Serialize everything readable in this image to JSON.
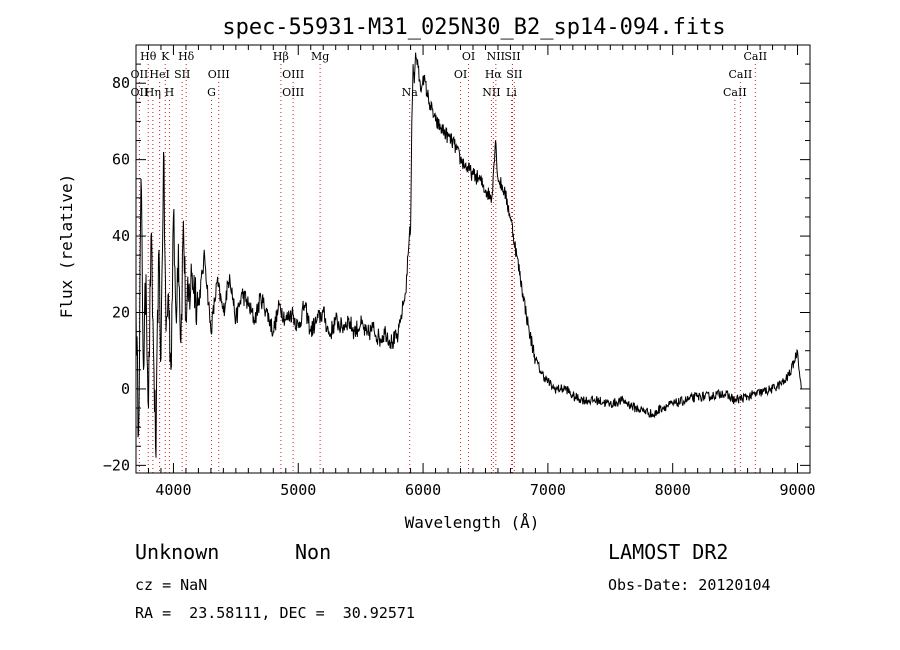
{
  "chart_data": {
    "type": "line",
    "title": "spec-55931-M31_025N30_B2_sp14-094.fits",
    "xlabel": "Wavelength (Å)",
    "ylabel": "Flux (relative)",
    "xlim": [
      3700,
      9100
    ],
    "ylim": [
      -22,
      90
    ],
    "x_ticks": [
      4000,
      5000,
      6000,
      7000,
      8000,
      9000
    ],
    "y_ticks": [
      -20,
      0,
      20,
      40,
      60,
      80
    ],
    "grid": false,
    "series": [
      {
        "color": "#000000",
        "x": [
          3700,
          3720,
          3740,
          3760,
          3780,
          3800,
          3820,
          3840,
          3860,
          3880,
          3900,
          3920,
          3940,
          3960,
          3980,
          4000,
          4020,
          4040,
          4060,
          4080,
          4100,
          4150,
          4200,
          4250,
          4300,
          4350,
          4400,
          4450,
          4500,
          4550,
          4600,
          4650,
          4700,
          4750,
          4800,
          4850,
          4900,
          4950,
          5000,
          5050,
          5100,
          5150,
          5200,
          5250,
          5300,
          5350,
          5400,
          5450,
          5500,
          5550,
          5600,
          5650,
          5700,
          5750,
          5800,
          5820,
          5840,
          5860,
          5880,
          5890,
          5900,
          5910,
          5920,
          5930,
          5940,
          5960,
          5980,
          6000,
          6050,
          6100,
          6150,
          6200,
          6250,
          6300,
          6350,
          6400,
          6450,
          6500,
          6550,
          6580,
          6600,
          6650,
          6700,
          6750,
          6800,
          6850,
          6900,
          6950,
          7000,
          7050,
          7100,
          7150,
          7200,
          7300,
          7400,
          7500,
          7600,
          7700,
          7800,
          7850,
          7900,
          8000,
          8100,
          8200,
          8300,
          8400,
          8500,
          8600,
          8700,
          8800,
          8900,
          8950,
          9000,
          9030
        ],
        "y": [
          22,
          -12,
          55,
          5,
          30,
          -5,
          40,
          10,
          -18,
          35,
          8,
          62,
          15,
          25,
          5,
          45,
          20,
          38,
          12,
          44,
          18,
          30,
          22,
          35,
          15,
          28,
          20,
          30,
          18,
          25,
          22,
          18,
          24,
          20,
          15,
          22,
          18,
          20,
          16,
          22,
          15,
          18,
          20,
          14,
          18,
          16,
          18,
          15,
          17,
          14,
          16,
          13,
          15,
          12,
          14,
          18,
          22,
          25,
          35,
          40,
          42,
          70,
          85,
          80,
          88,
          84,
          78,
          82,
          75,
          70,
          68,
          66,
          64,
          60,
          58,
          56,
          55,
          52,
          50,
          65,
          55,
          52,
          45,
          35,
          25,
          15,
          8,
          4,
          2,
          0,
          0,
          0,
          -2,
          -3,
          -3,
          -4,
          -3,
          -5,
          -6,
          -7,
          -5,
          -4,
          -3,
          -2,
          -2,
          -1,
          -3,
          -2,
          -1,
          0,
          2,
          5,
          10,
          0
        ]
      }
    ],
    "spectral_lines": [
      {
        "name": "Hθ",
        "x": 3798,
        "row": 0
      },
      {
        "name": "OII",
        "x": 3727,
        "row": 1
      },
      {
        "name": "OII",
        "x": 3727,
        "row": 2
      },
      {
        "name": "Hη",
        "x": 3835,
        "row": 2
      },
      {
        "name": "K",
        "x": 3934,
        "row": 0
      },
      {
        "name": "HeI",
        "x": 3889,
        "row": 1
      },
      {
        "name": "H",
        "x": 3968,
        "row": 2
      },
      {
        "name": "Hδ",
        "x": 4102,
        "row": 0
      },
      {
        "name": "SII",
        "x": 4070,
        "row": 1
      },
      {
        "name": "OIII",
        "x": 4363,
        "row": 1
      },
      {
        "name": "G",
        "x": 4305,
        "row": 2
      },
      {
        "name": "Hβ",
        "x": 4861,
        "row": 0
      },
      {
        "name": "OIII",
        "x": 4959,
        "row": 1
      },
      {
        "name": "OIII",
        "x": 4959,
        "row": 2
      },
      {
        "name": "Mg",
        "x": 5175,
        "row": 0
      },
      {
        "name": "Na",
        "x": 5893,
        "row": 2
      },
      {
        "name": "OI",
        "x": 6364,
        "row": 0
      },
      {
        "name": "OI",
        "x": 6300,
        "row": 1
      },
      {
        "name": "NII",
        "x": 6583,
        "row": 0
      },
      {
        "name": "SII",
        "x": 6716,
        "row": 0
      },
      {
        "name": "Hα",
        "x": 6563,
        "row": 1
      },
      {
        "name": "SII",
        "x": 6731,
        "row": 1
      },
      {
        "name": "NII",
        "x": 6548,
        "row": 2
      },
      {
        "name": "Li",
        "x": 6708,
        "row": 2
      },
      {
        "name": "CaII",
        "x": 8662,
        "row": 0
      },
      {
        "name": "CaII",
        "x": 8542,
        "row": 1
      },
      {
        "name": "CaII",
        "x": 8498,
        "row": 2
      }
    ]
  },
  "info": {
    "class": "Unknown",
    "subclass": "Non",
    "survey": "LAMOST DR2",
    "cz": "cz = NaN",
    "obs_date": "Obs-Date: 20120104",
    "coords": "RA =  23.58111, DEC =  30.92571"
  }
}
